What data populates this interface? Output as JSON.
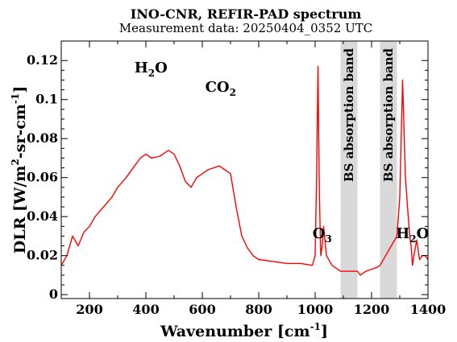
{
  "chart_data": {
    "type": "line",
    "title": "INO-CNR, REFIR-PAD spectrum",
    "subtitle": "Measurement data: 20250404_0352 UTC",
    "xlabel": {
      "main": "Wavenumber [cm",
      "sup": "-1",
      "end": "]"
    },
    "ylabel": {
      "p1": "DLR [W/m",
      "sup1": "2",
      "p2": "-sr-cm",
      "sup2": "-1",
      "p3": "]"
    },
    "xlim": [
      100,
      1400
    ],
    "ylim": [
      -0.002,
      0.13
    ],
    "xticks": [
      "200",
      "400",
      "600",
      "800",
      "1000",
      "1200",
      "1400"
    ],
    "yticks": [
      "0",
      "0.02",
      "0.04",
      "0.06",
      "0.08",
      "0.1",
      "0.12"
    ],
    "grid": false,
    "series_color": "#ff0000",
    "band_color": "#d9d9d9",
    "bands": [
      {
        "label": "BS absorption band",
        "x": [
          1090,
          1150
        ]
      },
      {
        "label": "BS absorption band",
        "x": [
          1230,
          1290
        ]
      }
    ],
    "annotations": [
      {
        "main": "H",
        "sub": "2",
        "rest": "O",
        "x": 418,
        "y": 0.114
      },
      {
        "main": "CO",
        "sub": "2",
        "rest": "",
        "x": 665,
        "y": 0.104
      },
      {
        "main": "O",
        "sub": "3",
        "rest": "",
        "x": 1025,
        "y": 0.029
      },
      {
        "main": "H",
        "sub": "2",
        "rest": "O",
        "x": 1345,
        "y": 0.029
      }
    ],
    "x": [
      100,
      120,
      140,
      160,
      180,
      200,
      220,
      250,
      280,
      300,
      330,
      360,
      380,
      400,
      420,
      450,
      480,
      500,
      520,
      540,
      560,
      580,
      600,
      620,
      640,
      660,
      680,
      700,
      720,
      740,
      760,
      780,
      800,
      850,
      900,
      950,
      990,
      1000,
      1005,
      1010,
      1015,
      1020,
      1025,
      1030,
      1040,
      1060,
      1080,
      1090,
      1150,
      1160,
      1180,
      1200,
      1220,
      1230,
      1290,
      1300,
      1310,
      1320,
      1330,
      1335,
      1340,
      1345,
      1350,
      1360,
      1370,
      1380,
      1390,
      1400
    ],
    "y": [
      0.015,
      0.02,
      0.03,
      0.025,
      0.032,
      0.035,
      0.04,
      0.045,
      0.05,
      0.055,
      0.06,
      0.066,
      0.07,
      0.072,
      0.07,
      0.071,
      0.074,
      0.072,
      0.066,
      0.058,
      0.055,
      0.06,
      0.062,
      0.064,
      0.065,
      0.066,
      0.064,
      0.062,
      0.045,
      0.03,
      0.024,
      0.02,
      0.018,
      0.017,
      0.016,
      0.016,
      0.015,
      0.02,
      0.06,
      0.117,
      0.05,
      0.02,
      0.025,
      0.035,
      0.02,
      0.015,
      0.013,
      0.012,
      0.012,
      0.01,
      0.012,
      0.013,
      0.014,
      0.015,
      0.03,
      0.05,
      0.11,
      0.06,
      0.04,
      0.03,
      0.025,
      0.015,
      0.02,
      0.028,
      0.018,
      0.02,
      0.02,
      0.018
    ]
  }
}
